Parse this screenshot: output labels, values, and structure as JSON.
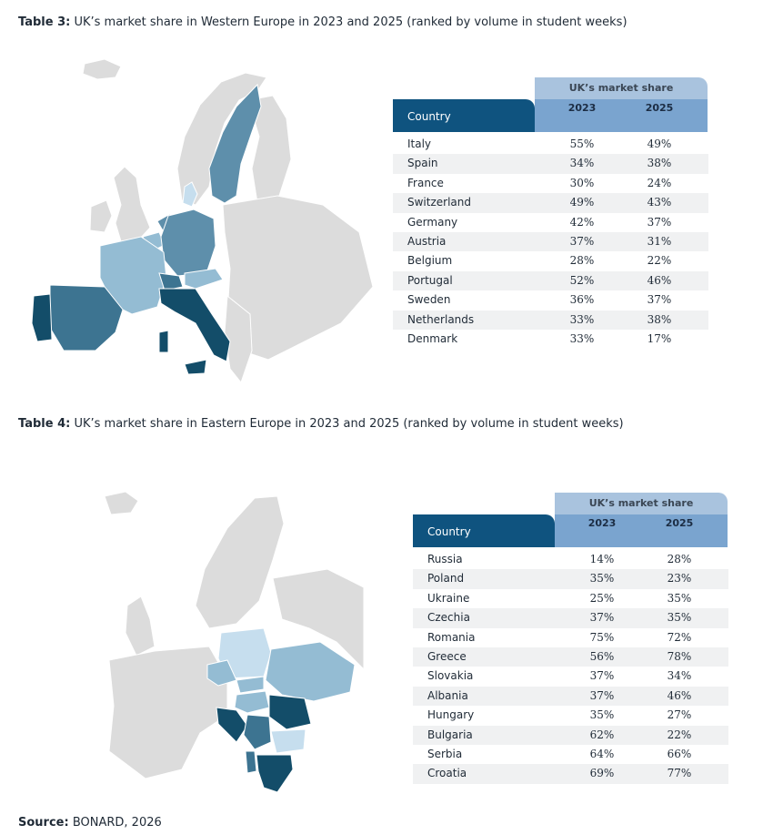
{
  "table3": {
    "label": "Table 3:",
    "caption": "UK’s market share in Western Europe in 2023 and 2025 (ranked by volume in student weeks)",
    "header_group": "UK’s market share",
    "header_country": "Country",
    "year1": "2023",
    "year2": "2025",
    "rows": [
      {
        "country": "Italy",
        "v2023": "55%",
        "v2025": "49%"
      },
      {
        "country": "Spain",
        "v2023": "34%",
        "v2025": "38%"
      },
      {
        "country": "France",
        "v2023": "30%",
        "v2025": "24%"
      },
      {
        "country": "Switzerland",
        "v2023": "49%",
        "v2025": "43%"
      },
      {
        "country": "Germany",
        "v2023": "42%",
        "v2025": "37%"
      },
      {
        "country": "Austria",
        "v2023": "37%",
        "v2025": "31%"
      },
      {
        "country": "Belgium",
        "v2023": "28%",
        "v2025": "22%"
      },
      {
        "country": "Portugal",
        "v2023": "52%",
        "v2025": "46%"
      },
      {
        "country": "Sweden",
        "v2023": "36%",
        "v2025": "37%"
      },
      {
        "country": "Netherlands",
        "v2023": "33%",
        "v2025": "38%"
      },
      {
        "country": "Denmark",
        "v2023": "33%",
        "v2025": "17%"
      }
    ]
  },
  "table4": {
    "label": "Table 4:",
    "caption": "UK’s market share in Eastern Europe in 2023 and 2025 (ranked by volume in student weeks)",
    "header_group": "UK’s market share",
    "header_country": "Country",
    "year1": "2023",
    "year2": "2025",
    "rows": [
      {
        "country": "Russia",
        "v2023": "14%",
        "v2025": "28%"
      },
      {
        "country": "Poland",
        "v2023": "35%",
        "v2025": "23%"
      },
      {
        "country": "Ukraine",
        "v2023": "25%",
        "v2025": "35%"
      },
      {
        "country": "Czechia",
        "v2023": "37%",
        "v2025": "35%"
      },
      {
        "country": "Romania",
        "v2023": "75%",
        "v2025": "72%"
      },
      {
        "country": "Greece",
        "v2023": "56%",
        "v2025": "78%"
      },
      {
        "country": "Slovakia",
        "v2023": "37%",
        "v2025": "34%"
      },
      {
        "country": "Albania",
        "v2023": "37%",
        "v2025": "46%"
      },
      {
        "country": "Hungary",
        "v2023": "35%",
        "v2025": "27%"
      },
      {
        "country": "Bulgaria",
        "v2023": "62%",
        "v2025": "22%"
      },
      {
        "country": "Serbia",
        "v2023": "64%",
        "v2025": "66%"
      },
      {
        "country": "Croatia",
        "v2023": "69%",
        "v2025": "77%"
      }
    ]
  },
  "source": {
    "label": "Source:",
    "text": "BONARD, 2026"
  },
  "colors": {
    "map_base": "#dcdcdc",
    "share_darkest": "#134d69",
    "share_dark": "#3d7491",
    "share_mid": "#5e8fab",
    "share_light": "#94bcd3",
    "share_lightest": "#c6deee",
    "header_country_bg": "#0f537f",
    "header_group_bg": "#a9c3de",
    "header_years_bg": "#7aa4cf",
    "row_alt_bg": "#f0f1f2"
  }
}
